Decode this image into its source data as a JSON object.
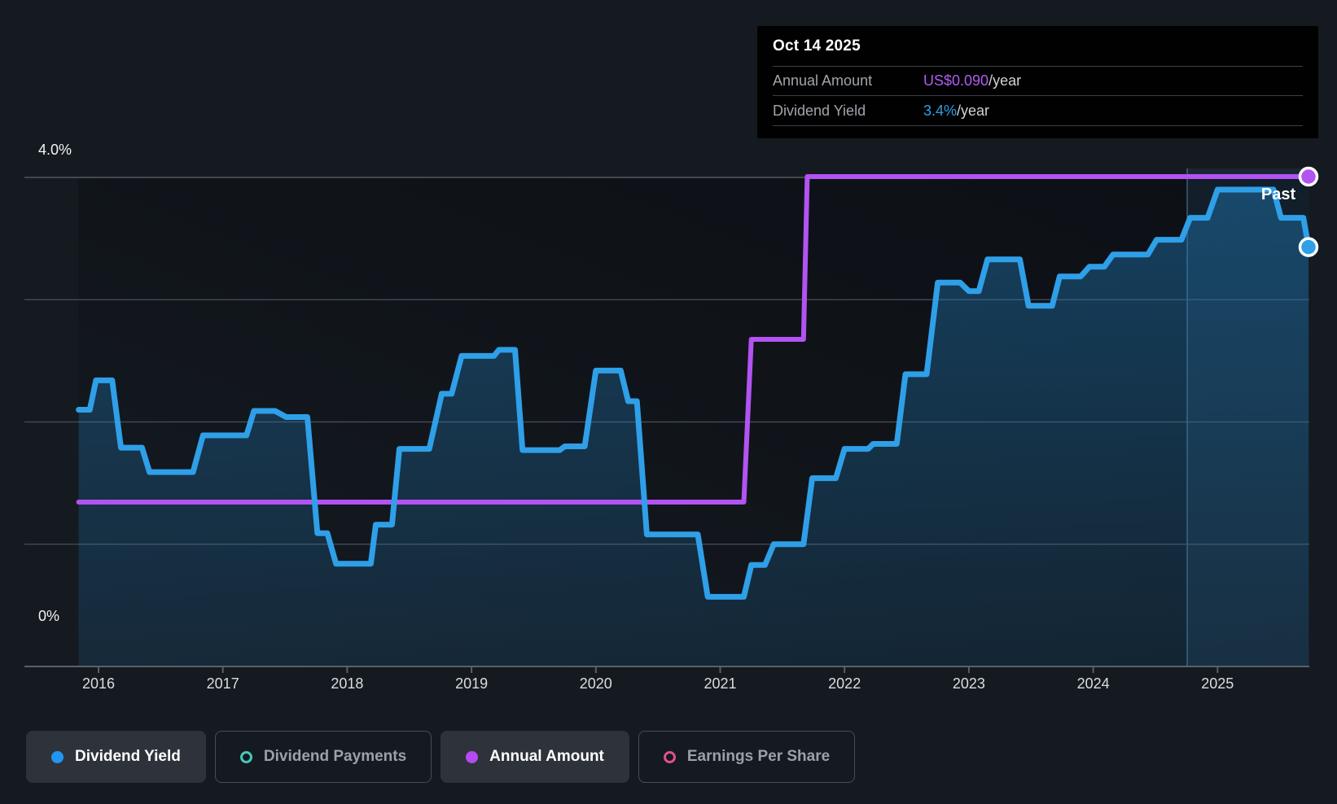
{
  "tooltip": {
    "date": "Oct 14 2025",
    "rows": [
      {
        "label": "Annual Amount",
        "value": "US$0.090",
        "suffix": "/year",
        "color": "#b05cf2"
      },
      {
        "label": "Dividend Yield",
        "value": "3.4%",
        "suffix": "/year",
        "color": "#2e9fe6"
      }
    ]
  },
  "y_axis": {
    "top_label": "4.0%",
    "bottom_label": "0%"
  },
  "x_axis": {
    "ticks": [
      "2016",
      "2017",
      "2018",
      "2019",
      "2020",
      "2021",
      "2022",
      "2023",
      "2024",
      "2025"
    ]
  },
  "past_label": "Past",
  "legend": {
    "items": [
      {
        "label": "Dividend Yield",
        "style": "dot",
        "color": "#2196f3",
        "active": true
      },
      {
        "label": "Dividend Payments",
        "style": "ring",
        "color": "#46c8ba",
        "active": false
      },
      {
        "label": "Annual Amount",
        "style": "dot",
        "color": "#b44bf0",
        "active": true
      },
      {
        "label": "Earnings Per Share",
        "style": "ring",
        "color": "#e0508e",
        "active": false
      }
    ]
  },
  "chart_data": {
    "type": "line",
    "step": true,
    "title": "Dividend history",
    "ylabel": "Dividend Yield",
    "ylim_percent": [
      0,
      4.0
    ],
    "y_gridlines_percent": [
      4,
      3,
      2,
      1
    ],
    "x_range_years": [
      2015.84,
      2025.79
    ],
    "past_region_start_year": 2024.76,
    "legend_position": "bottom",
    "series": [
      {
        "name": "Dividend Yield",
        "unit": "%",
        "color": "#2f9fe8",
        "segments_year_start_end_value": [
          [
            2015.84,
            2015.93,
            2.1
          ],
          [
            2015.98,
            2016.11,
            2.34
          ],
          [
            2016.18,
            2016.35,
            1.79
          ],
          [
            2016.41,
            2016.76,
            1.59
          ],
          [
            2016.84,
            2017.19,
            1.89
          ],
          [
            2017.25,
            2017.42,
            2.09
          ],
          [
            2017.51,
            2017.68,
            2.04
          ],
          [
            2017.76,
            2017.84,
            1.09
          ],
          [
            2017.91,
            2018.19,
            0.84
          ],
          [
            2018.23,
            2018.36,
            1.16
          ],
          [
            2018.42,
            2018.66,
            1.78
          ],
          [
            2018.76,
            2018.84,
            2.23
          ],
          [
            2018.92,
            2019.18,
            2.54
          ],
          [
            2019.22,
            2019.35,
            2.59
          ],
          [
            2019.41,
            2019.71,
            1.77
          ],
          [
            2019.75,
            2019.91,
            1.8
          ],
          [
            2020.0,
            2020.2,
            2.42
          ],
          [
            2020.26,
            2020.33,
            2.17
          ],
          [
            2020.41,
            2020.82,
            1.08
          ],
          [
            2020.9,
            2021.19,
            0.57
          ],
          [
            2021.25,
            2021.36,
            0.83
          ],
          [
            2021.43,
            2021.67,
            1.0
          ],
          [
            2021.74,
            2021.93,
            1.54
          ],
          [
            2022.0,
            2022.19,
            1.78
          ],
          [
            2022.23,
            2022.42,
            1.82
          ],
          [
            2022.49,
            2022.66,
            2.39
          ],
          [
            2022.75,
            2022.93,
            3.14
          ],
          [
            2023.0,
            2023.08,
            3.07
          ],
          [
            2023.15,
            2023.41,
            3.33
          ],
          [
            2023.48,
            2023.67,
            2.95
          ],
          [
            2023.73,
            2023.9,
            3.19
          ],
          [
            2023.97,
            2024.09,
            3.27
          ],
          [
            2024.16,
            2024.44,
            3.37
          ],
          [
            2024.51,
            2024.71,
            3.49
          ],
          [
            2024.78,
            2024.92,
            3.67
          ],
          [
            2025.0,
            2025.45,
            3.9
          ],
          [
            2025.51,
            2025.69,
            3.67
          ]
        ],
        "end_point": {
          "date": "Oct 14 2025",
          "year": 2025.79,
          "value": 3.4
        }
      },
      {
        "name": "Annual Amount",
        "unit": "US$/year",
        "color": "#b253f2",
        "segments_year_start_end_value": [
          [
            2015.84,
            2021.19,
            0.045
          ],
          [
            2021.25,
            2021.67,
            0.0675
          ],
          [
            2021.7,
            2025.75,
            0.09
          ]
        ],
        "end_point": {
          "date": "Oct 14 2025",
          "year": 2025.79,
          "value": 0.09
        }
      }
    ]
  }
}
